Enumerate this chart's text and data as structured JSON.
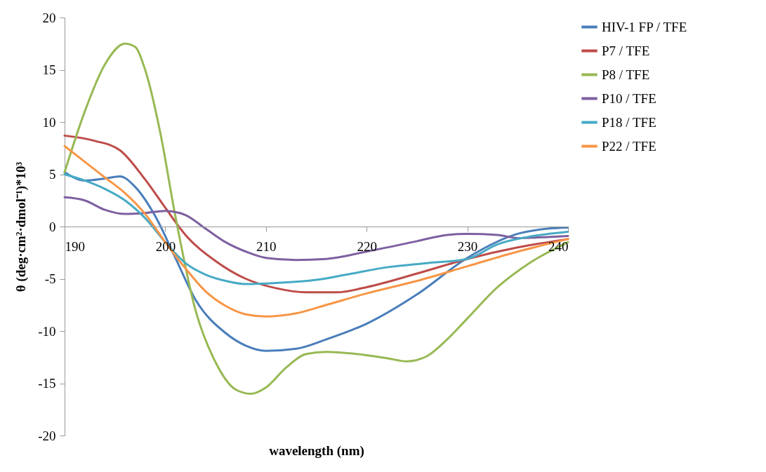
{
  "chart_data": {
    "type": "line",
    "xlabel": "wavelength (nm)",
    "ylabel": "θ (deg·cm²·dmol⁻¹)*10³",
    "xlim": [
      190,
      240
    ],
    "xticks": [
      190,
      200,
      210,
      220,
      230,
      240
    ],
    "ylim": [
      -20,
      20
    ],
    "yticks": [
      -20,
      -15,
      -10,
      -5,
      0,
      5,
      10,
      15,
      20
    ],
    "grid": false,
    "legend": "right",
    "marker": "none",
    "line_style": "solid",
    "series": [
      {
        "name": "HIV-1 FP / TFE",
        "color": "#4a7ebb",
        "x": [
          190,
          192,
          194,
          195.5,
          197,
          199,
          201,
          203,
          206,
          208,
          210,
          213,
          216,
          220,
          225,
          230,
          235,
          238,
          240
        ],
        "values": [
          5.2,
          4.4,
          4.6,
          4.8,
          3.8,
          1,
          -3,
          -7,
          -10.2,
          -11.4,
          -11.9,
          -11.7,
          -10.8,
          -9.3,
          -6.5,
          -3,
          -0.7,
          -0.2,
          -0.1
        ]
      },
      {
        "name": "P7 / TFE",
        "color": "#be4b48",
        "x": [
          190,
          193,
          195.5,
          198,
          200,
          202,
          205,
          208,
          211,
          214,
          217,
          220,
          225,
          230,
          235,
          240
        ],
        "values": [
          8.7,
          8.2,
          7.3,
          4.5,
          1.8,
          -0.8,
          -3.3,
          -5,
          -5.9,
          -6.3,
          -6.3,
          -5.8,
          -4.5,
          -3.1,
          -2,
          -1.2
        ]
      },
      {
        "name": "P8 / TFE",
        "color": "#98b954",
        "x": [
          190,
          192,
          194,
          196,
          197,
          198,
          199.5,
          201,
          203,
          205,
          207,
          208.5,
          210,
          212,
          214,
          216,
          219,
          222,
          224,
          226,
          228,
          230,
          233,
          236,
          240
        ],
        "values": [
          5.2,
          11,
          15.5,
          17.5,
          17.2,
          15,
          9,
          1,
          -8,
          -13,
          -15.6,
          -16,
          -15.4,
          -13.5,
          -12.2,
          -12,
          -12.2,
          -12.6,
          -12.9,
          -12.4,
          -10.8,
          -8.8,
          -5.8,
          -3.6,
          -1.5
        ]
      },
      {
        "name": "P10 / TFE",
        "color": "#7d60a0",
        "x": [
          190,
          192,
          194,
          196,
          198,
          200,
          202,
          204,
          206,
          208,
          210,
          213,
          216,
          220,
          225,
          228,
          230,
          233,
          235,
          238,
          240
        ],
        "values": [
          2.8,
          2.5,
          1.6,
          1.2,
          1.3,
          1.5,
          1.1,
          -0.2,
          -1.5,
          -2.4,
          -3,
          -3.2,
          -3.1,
          -2.4,
          -1.4,
          -0.8,
          -0.7,
          -0.8,
          -1.1,
          -1,
          -0.9
        ]
      },
      {
        "name": "P18 / TFE",
        "color": "#46aac5",
        "x": [
          190,
          192,
          194,
          196,
          198,
          200,
          202,
          204,
          206,
          208,
          211,
          215,
          218,
          222,
          226,
          230,
          233,
          236,
          240
        ],
        "values": [
          5,
          4.4,
          3.6,
          2.5,
          0.8,
          -1.5,
          -3.5,
          -4.6,
          -5.2,
          -5.5,
          -5.4,
          -5.1,
          -4.6,
          -3.9,
          -3.5,
          -3.1,
          -1.7,
          -1,
          -0.5
        ]
      },
      {
        "name": "P22 / TFE",
        "color": "#f79646",
        "x": [
          190,
          192,
          194,
          196,
          198,
          200,
          202,
          204,
          206,
          208,
          210,
          213,
          216,
          220,
          225,
          230,
          235,
          240
        ],
        "values": [
          7.7,
          6.2,
          4.7,
          3.2,
          1.2,
          -1.5,
          -4,
          -6.2,
          -7.6,
          -8.4,
          -8.6,
          -8.3,
          -7.5,
          -6.4,
          -5.2,
          -3.8,
          -2.4,
          -1.2
        ]
      }
    ]
  }
}
